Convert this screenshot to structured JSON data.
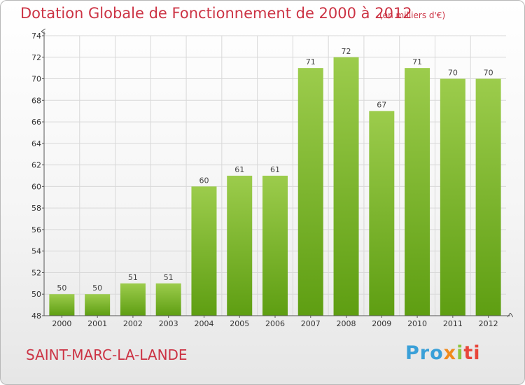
{
  "header": {
    "title": "Dotation Globale de Fonctionnement de 2000 à 2012",
    "subtitle": "(en milliers d'€)"
  },
  "footer": {
    "commune": "SAINT-MARC-LA-LANDE",
    "logo_parts": [
      "Pro",
      "x",
      "i",
      "ti"
    ]
  },
  "colors": {
    "title": "#cc3344",
    "bar_top": "#9ccc4c",
    "bar_bottom": "#5e9e12",
    "grid": "#d8d8d8"
  },
  "chart_data": {
    "type": "bar",
    "title": "Dotation Globale de Fonctionnement de 2000 à 2012",
    "subtitle": "(en milliers d'€)",
    "xlabel": "",
    "ylabel": "",
    "categories": [
      "2000",
      "2001",
      "2002",
      "2003",
      "2004",
      "2005",
      "2006",
      "2007",
      "2008",
      "2009",
      "2010",
      "2011",
      "2012"
    ],
    "values": [
      50,
      50,
      51,
      51,
      60,
      61,
      61,
      71,
      72,
      67,
      71,
      70,
      70
    ],
    "ylim": [
      48,
      74
    ],
    "yticks": [
      48,
      50,
      52,
      54,
      56,
      58,
      60,
      62,
      64,
      66,
      68,
      70,
      72,
      74
    ],
    "grid": true,
    "legend": "none"
  }
}
